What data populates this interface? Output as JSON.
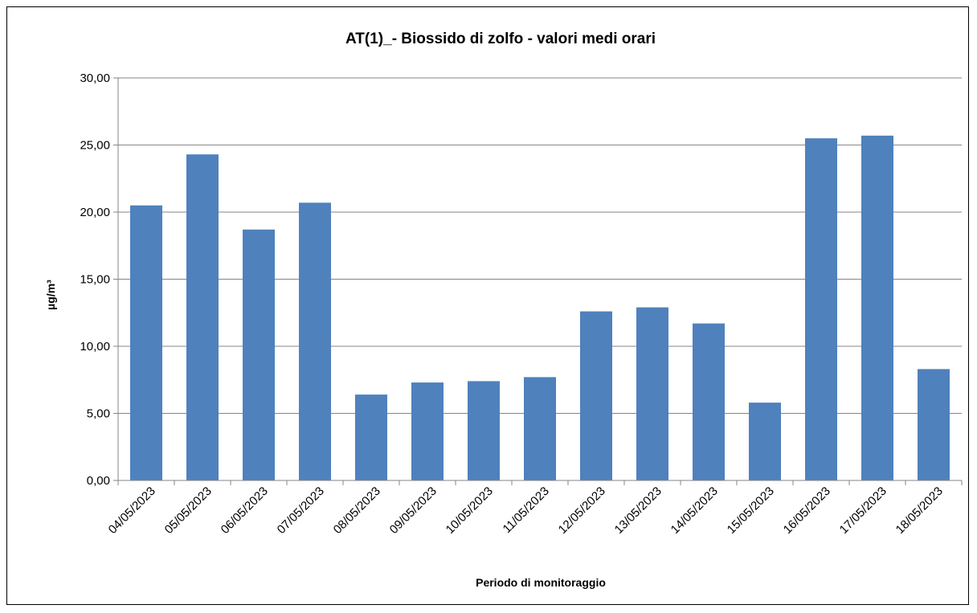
{
  "chart_data": {
    "type": "bar",
    "title": "AT(1)_- Biossido di zolfo - valori medi orari",
    "xlabel": "Periodo di  monitoraggio",
    "ylabel": "µg/m³",
    "ylim": [
      0,
      30
    ],
    "yticks": [
      "0,00",
      "5,00",
      "10,00",
      "15,00",
      "20,00",
      "25,00",
      "30,00"
    ],
    "grid": true,
    "legend": "none",
    "categories": [
      "04/05/2023",
      "05/05/2023",
      "06/05/2023",
      "07/05/2023",
      "08/05/2023",
      "09/05/2023",
      "10/05/2023",
      "11/05/2023",
      "12/05/2023",
      "13/05/2023",
      "14/05/2023",
      "15/05/2023",
      "16/05/2023",
      "17/05/2023",
      "18/05/2023"
    ],
    "values": [
      20.5,
      24.3,
      18.7,
      20.7,
      6.4,
      7.3,
      7.4,
      7.7,
      12.6,
      12.9,
      11.7,
      5.8,
      25.5,
      25.7,
      8.3
    ],
    "colors": {
      "bar": "#4F81BD",
      "grid": "#868686",
      "axis": "#868686"
    }
  }
}
